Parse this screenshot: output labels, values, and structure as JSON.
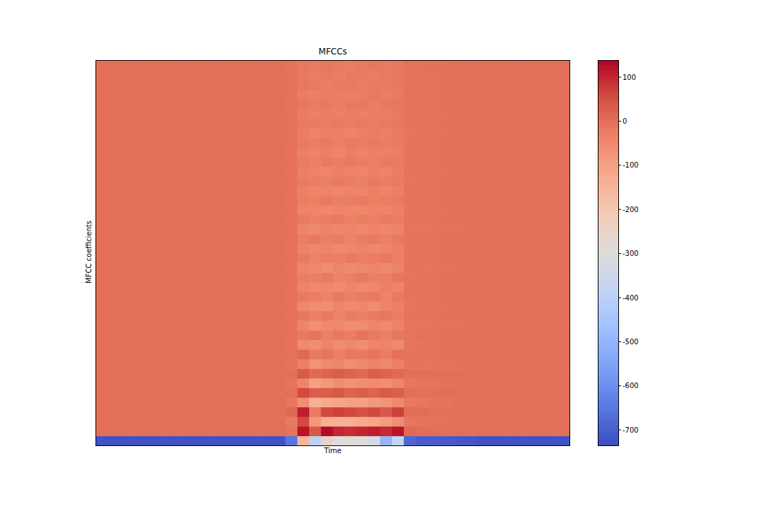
{
  "chart_data": {
    "type": "heatmap",
    "title": "MFCCs",
    "x_label": "Time",
    "y_label": "MFCC coefficients",
    "tick_labels": false,
    "colorbar": {
      "range": [
        -735,
        137
      ],
      "ticks": [
        100,
        0,
        -100,
        -200,
        -300,
        -400,
        -500,
        -600,
        -700
      ]
    },
    "cells": [
      [
        -720,
        -720,
        -720,
        -720,
        -720,
        -720,
        -720,
        -720,
        -720,
        -720,
        -720,
        -720,
        -720,
        -720,
        -720,
        -720,
        -650,
        -150,
        -400,
        -250,
        -300,
        -280,
        -300,
        -330,
        -500,
        -380,
        -680,
        -700,
        -700,
        -705,
        -710,
        -715,
        -720,
        -720,
        -720,
        -720,
        -720,
        -720,
        -720,
        -720
      ],
      [
        0,
        0,
        0,
        0,
        0,
        0,
        0,
        0,
        0,
        0,
        0,
        0,
        0,
        0,
        0,
        0,
        -10,
        120,
        40,
        130,
        100,
        90,
        100,
        110,
        95,
        120,
        10,
        5,
        0,
        0,
        0,
        0,
        0,
        0,
        0,
        0,
        0,
        0,
        0,
        0
      ],
      [
        0,
        0,
        0,
        0,
        0,
        0,
        0,
        0,
        0,
        0,
        0,
        0,
        0,
        0,
        0,
        0,
        -20,
        60,
        -80,
        -130,
        -140,
        -130,
        -120,
        -110,
        -90,
        -60,
        -15,
        -10,
        -5,
        -5,
        0,
        0,
        0,
        0,
        0,
        0,
        0,
        0,
        0,
        0
      ],
      [
        0,
        0,
        0,
        0,
        0,
        0,
        0,
        0,
        0,
        0,
        0,
        0,
        0,
        0,
        0,
        0,
        10,
        110,
        -20,
        60,
        70,
        60,
        50,
        60,
        40,
        70,
        5,
        5,
        0,
        0,
        0,
        0,
        0,
        0,
        0,
        0,
        0,
        0,
        0,
        0
      ],
      [
        0,
        0,
        0,
        0,
        0,
        0,
        0,
        0,
        0,
        0,
        0,
        0,
        0,
        0,
        0,
        0,
        -15,
        -60,
        -140,
        -120,
        -110,
        -100,
        -100,
        -80,
        -70,
        -50,
        -20,
        -15,
        -10,
        -8,
        -5,
        0,
        0,
        0,
        0,
        0,
        0,
        0,
        0,
        0
      ],
      [
        0,
        0,
        0,
        0,
        0,
        0,
        0,
        0,
        0,
        0,
        0,
        0,
        0,
        0,
        0,
        0,
        0,
        60,
        30,
        30,
        40,
        20,
        30,
        20,
        40,
        30,
        0,
        0,
        0,
        0,
        0,
        0,
        0,
        0,
        0,
        0,
        0,
        0,
        0,
        0
      ],
      [
        0,
        0,
        0,
        0,
        0,
        0,
        0,
        0,
        0,
        0,
        0,
        0,
        0,
        0,
        0,
        0,
        -10,
        -40,
        -100,
        -80,
        -60,
        -70,
        -60,
        -50,
        -60,
        -40,
        -15,
        -10,
        -10,
        -5,
        -5,
        0,
        0,
        0,
        0,
        0,
        0,
        0,
        0,
        0
      ],
      [
        0,
        0,
        0,
        0,
        0,
        0,
        0,
        0,
        0,
        0,
        0,
        0,
        0,
        0,
        0,
        0,
        0,
        40,
        10,
        20,
        30,
        20,
        10,
        30,
        20,
        10,
        0,
        0,
        0,
        0,
        0,
        0,
        0,
        0,
        0,
        0,
        0,
        0,
        0,
        0
      ],
      [
        0,
        0,
        0,
        0,
        0,
        0,
        0,
        0,
        0,
        0,
        0,
        0,
        0,
        0,
        0,
        0,
        -5,
        -30,
        -70,
        -50,
        -40,
        -60,
        -45,
        -35,
        -50,
        -30,
        -10,
        -10,
        -8,
        -5,
        -5,
        0,
        0,
        0,
        0,
        0,
        0,
        0,
        0,
        0
      ],
      [
        0,
        0,
        0,
        0,
        0,
        0,
        0,
        0,
        0,
        0,
        0,
        0,
        0,
        0,
        0,
        0,
        -5,
        10,
        -20,
        -10,
        -30,
        -15,
        -20,
        -10,
        -25,
        -5,
        -8,
        -5,
        -5,
        -3,
        0,
        0,
        0,
        0,
        0,
        0,
        0,
        0,
        0,
        0
      ],
      [
        0,
        0,
        0,
        0,
        0,
        0,
        0,
        0,
        0,
        0,
        0,
        0,
        0,
        0,
        0,
        0,
        -5,
        -50,
        -60,
        -40,
        -55,
        -45,
        -60,
        -40,
        -35,
        -50,
        -12,
        -10,
        -8,
        -5,
        -5,
        0,
        0,
        0,
        0,
        0,
        0,
        0,
        0,
        0
      ],
      [
        0,
        0,
        0,
        0,
        0,
        0,
        0,
        0,
        0,
        0,
        0,
        0,
        0,
        0,
        0,
        0,
        -5,
        -20,
        -10,
        -30,
        -15,
        -25,
        -10,
        -20,
        -30,
        -15,
        -8,
        -5,
        -5,
        -3,
        0,
        0,
        0,
        0,
        0,
        0,
        0,
        0,
        0,
        0
      ],
      [
        0,
        0,
        0,
        0,
        0,
        0,
        0,
        0,
        0,
        0,
        0,
        0,
        0,
        0,
        0,
        0,
        -5,
        -40,
        -65,
        -50,
        -45,
        -60,
        -55,
        -40,
        -50,
        -35,
        -12,
        -10,
        -8,
        -5,
        -5,
        0,
        0,
        0,
        0,
        0,
        0,
        0,
        0,
        0
      ],
      [
        0,
        0,
        0,
        0,
        0,
        0,
        0,
        0,
        0,
        0,
        0,
        0,
        0,
        0,
        0,
        0,
        -5,
        -15,
        -30,
        -20,
        -35,
        -25,
        -30,
        -20,
        -15,
        -25,
        -8,
        -6,
        -5,
        -3,
        0,
        0,
        0,
        0,
        0,
        0,
        0,
        0,
        0,
        0
      ],
      [
        0,
        0,
        0,
        0,
        0,
        0,
        0,
        0,
        0,
        0,
        0,
        0,
        0,
        0,
        0,
        0,
        -5,
        -45,
        -55,
        -60,
        -40,
        -50,
        -45,
        -55,
        -40,
        -30,
        -12,
        -10,
        -8,
        -5,
        -5,
        0,
        0,
        0,
        0,
        0,
        0,
        0,
        0,
        0
      ],
      [
        0,
        0,
        0,
        0,
        0,
        0,
        0,
        0,
        0,
        0,
        0,
        0,
        0,
        0,
        0,
        0,
        -5,
        -20,
        -25,
        -35,
        -20,
        -30,
        -25,
        -20,
        -35,
        -20,
        -8,
        -6,
        -5,
        -3,
        0,
        0,
        0,
        0,
        0,
        0,
        0,
        0,
        0,
        0
      ],
      [
        0,
        0,
        0,
        0,
        0,
        0,
        0,
        0,
        0,
        0,
        0,
        0,
        0,
        0,
        0,
        0,
        -5,
        -35,
        -50,
        -45,
        -55,
        -40,
        -50,
        -45,
        -30,
        -40,
        -10,
        -10,
        -8,
        -5,
        -5,
        0,
        0,
        0,
        0,
        0,
        0,
        0,
        0,
        0
      ],
      [
        0,
        0,
        0,
        0,
        0,
        0,
        0,
        0,
        0,
        0,
        0,
        0,
        0,
        0,
        0,
        0,
        -5,
        -25,
        -30,
        -20,
        -35,
        -30,
        -20,
        -30,
        -25,
        -15,
        -8,
        -6,
        -5,
        -3,
        0,
        0,
        0,
        0,
        0,
        0,
        0,
        0,
        0,
        0
      ],
      [
        0,
        0,
        0,
        0,
        0,
        0,
        0,
        0,
        0,
        0,
        0,
        0,
        0,
        0,
        0,
        0,
        -5,
        -40,
        -45,
        -55,
        -40,
        -50,
        -45,
        -40,
        -50,
        -35,
        -10,
        -10,
        -8,
        -5,
        -5,
        0,
        0,
        0,
        0,
        0,
        0,
        0,
        0,
        0
      ],
      [
        0,
        0,
        0,
        0,
        0,
        0,
        0,
        0,
        0,
        0,
        0,
        0,
        0,
        0,
        0,
        0,
        -5,
        -20,
        -35,
        -25,
        -30,
        -20,
        -30,
        -25,
        -20,
        -30,
        -8,
        -6,
        -5,
        -3,
        0,
        0,
        0,
        0,
        0,
        0,
        0,
        0,
        0,
        0
      ],
      [
        0,
        0,
        0,
        0,
        0,
        0,
        0,
        0,
        0,
        0,
        0,
        0,
        0,
        0,
        0,
        0,
        -5,
        -35,
        -45,
        -40,
        -50,
        -45,
        -35,
        -45,
        -40,
        -30,
        -10,
        -8,
        -8,
        -5,
        -5,
        0,
        0,
        0,
        0,
        0,
        0,
        0,
        0,
        0
      ],
      [
        0,
        0,
        0,
        0,
        0,
        0,
        0,
        0,
        0,
        0,
        0,
        0,
        0,
        0,
        0,
        0,
        -5,
        -25,
        -20,
        -30,
        -25,
        -35,
        -25,
        -20,
        -30,
        -20,
        -8,
        -6,
        -5,
        -3,
        0,
        0,
        0,
        0,
        0,
        0,
        0,
        0,
        0,
        0
      ],
      [
        0,
        0,
        0,
        0,
        0,
        0,
        0,
        0,
        0,
        0,
        0,
        0,
        0,
        0,
        0,
        0,
        -5,
        -40,
        -50,
        -35,
        -45,
        -40,
        -50,
        -35,
        -45,
        -35,
        -10,
        -8,
        -8,
        -5,
        -5,
        0,
        0,
        0,
        0,
        0,
        0,
        0,
        0,
        0
      ],
      [
        0,
        0,
        0,
        0,
        0,
        0,
        0,
        0,
        0,
        0,
        0,
        0,
        0,
        0,
        0,
        0,
        -5,
        -20,
        -30,
        -25,
        -20,
        -30,
        -25,
        -30,
        -20,
        -25,
        -8,
        -6,
        -5,
        -3,
        0,
        0,
        0,
        0,
        0,
        0,
        0,
        0,
        0,
        0
      ],
      [
        0,
        0,
        0,
        0,
        0,
        0,
        0,
        0,
        0,
        0,
        0,
        0,
        0,
        0,
        0,
        0,
        -5,
        -35,
        -40,
        -45,
        -35,
        -40,
        -45,
        -35,
        -40,
        -30,
        -10,
        -8,
        -6,
        -5,
        -3,
        0,
        0,
        0,
        0,
        0,
        0,
        0,
        0,
        0
      ],
      [
        0,
        0,
        0,
        0,
        0,
        0,
        0,
        0,
        0,
        0,
        0,
        0,
        0,
        0,
        0,
        0,
        -5,
        -25,
        -30,
        -20,
        -30,
        -25,
        -20,
        -30,
        -25,
        -20,
        -8,
        -6,
        -5,
        -3,
        0,
        0,
        0,
        0,
        0,
        0,
        0,
        0,
        0,
        0
      ],
      [
        0,
        0,
        0,
        0,
        0,
        0,
        0,
        0,
        0,
        0,
        0,
        0,
        0,
        0,
        0,
        0,
        -5,
        -30,
        -40,
        -35,
        -45,
        -35,
        -40,
        -30,
        -35,
        -30,
        -10,
        -8,
        -6,
        -5,
        -3,
        0,
        0,
        0,
        0,
        0,
        0,
        0,
        0,
        0
      ],
      [
        0,
        0,
        0,
        0,
        0,
        0,
        0,
        0,
        0,
        0,
        0,
        0,
        0,
        0,
        0,
        0,
        -5,
        -20,
        -25,
        -30,
        -20,
        -25,
        -30,
        -20,
        -25,
        -20,
        -8,
        -6,
        -5,
        -3,
        0,
        0,
        0,
        0,
        0,
        0,
        0,
        0,
        0,
        0
      ],
      [
        0,
        0,
        0,
        0,
        0,
        0,
        0,
        0,
        0,
        0,
        0,
        0,
        0,
        0,
        0,
        0,
        -5,
        -30,
        -35,
        -40,
        -30,
        -35,
        -40,
        -30,
        -35,
        -25,
        -8,
        -8,
        -6,
        -5,
        -3,
        0,
        0,
        0,
        0,
        0,
        0,
        0,
        0,
        0
      ],
      [
        0,
        0,
        0,
        0,
        0,
        0,
        0,
        0,
        0,
        0,
        0,
        0,
        0,
        0,
        0,
        0,
        -5,
        -20,
        -30,
        -20,
        -25,
        -20,
        -25,
        -30,
        -20,
        -20,
        -8,
        -6,
        -5,
        -3,
        0,
        0,
        0,
        0,
        0,
        0,
        0,
        0,
        0,
        0
      ],
      [
        0,
        0,
        0,
        0,
        0,
        0,
        0,
        0,
        0,
        0,
        0,
        0,
        0,
        0,
        0,
        0,
        -5,
        -30,
        -35,
        -30,
        -40,
        -30,
        -35,
        -30,
        -30,
        -25,
        -8,
        -8,
        -6,
        -5,
        -3,
        0,
        0,
        0,
        0,
        0,
        0,
        0,
        0,
        0
      ],
      [
        0,
        0,
        0,
        0,
        0,
        0,
        0,
        0,
        0,
        0,
        0,
        0,
        0,
        0,
        0,
        0,
        -5,
        -20,
        -25,
        -20,
        -30,
        -20,
        -25,
        -20,
        -25,
        -20,
        -8,
        -6,
        -5,
        -3,
        0,
        0,
        0,
        0,
        0,
        0,
        0,
        0,
        0,
        0
      ],
      [
        0,
        0,
        0,
        0,
        0,
        0,
        0,
        0,
        0,
        0,
        0,
        0,
        0,
        0,
        0,
        0,
        -5,
        -25,
        -35,
        -30,
        -30,
        -35,
        -30,
        -25,
        -30,
        -20,
        -8,
        -6,
        -6,
        -5,
        -3,
        0,
        0,
        0,
        0,
        0,
        0,
        0,
        0,
        0
      ],
      [
        0,
        0,
        0,
        0,
        0,
        0,
        0,
        0,
        0,
        0,
        0,
        0,
        0,
        0,
        0,
        0,
        -5,
        -20,
        -20,
        -25,
        -20,
        -25,
        -20,
        -25,
        -20,
        -15,
        -6,
        -6,
        -5,
        -3,
        0,
        0,
        0,
        0,
        0,
        0,
        0,
        0,
        0,
        0
      ],
      [
        0,
        0,
        0,
        0,
        0,
        0,
        0,
        0,
        0,
        0,
        0,
        0,
        0,
        0,
        0,
        0,
        -5,
        -25,
        -30,
        -25,
        -30,
        -25,
        -30,
        -25,
        -25,
        -20,
        -8,
        -6,
        -5,
        -5,
        -3,
        0,
        0,
        0,
        0,
        0,
        0,
        0,
        0,
        0
      ],
      [
        0,
        0,
        0,
        0,
        0,
        0,
        0,
        0,
        0,
        0,
        0,
        0,
        0,
        0,
        0,
        0,
        -5,
        -15,
        -25,
        -20,
        -25,
        -20,
        -20,
        -25,
        -20,
        -15,
        -6,
        -5,
        -5,
        -3,
        0,
        0,
        0,
        0,
        0,
        0,
        0,
        0,
        0,
        0
      ],
      [
        0,
        0,
        0,
        0,
        0,
        0,
        0,
        0,
        0,
        0,
        0,
        0,
        0,
        0,
        0,
        0,
        -5,
        -25,
        -30,
        -25,
        -25,
        -30,
        -25,
        -20,
        -25,
        -20,
        -6,
        -6,
        -5,
        -3,
        -3,
        0,
        0,
        0,
        0,
        0,
        0,
        0,
        0,
        0
      ],
      [
        0,
        0,
        0,
        0,
        0,
        0,
        0,
        0,
        0,
        0,
        0,
        0,
        0,
        0,
        0,
        0,
        -5,
        -15,
        -20,
        -25,
        -20,
        -20,
        -25,
        -20,
        -20,
        -15,
        -6,
        -5,
        -5,
        -3,
        0,
        0,
        0,
        0,
        0,
        0,
        0,
        0,
        0,
        0
      ],
      [
        0,
        0,
        0,
        0,
        0,
        0,
        0,
        0,
        0,
        0,
        0,
        0,
        0,
        0,
        0,
        0,
        -5,
        -20,
        -25,
        -20,
        -25,
        -20,
        -20,
        -25,
        -20,
        -15,
        -6,
        -5,
        -5,
        -3,
        0,
        0,
        0,
        0,
        0,
        0,
        0,
        0,
        0,
        0
      ],
      [
        0,
        0,
        0,
        0,
        0,
        0,
        0,
        0,
        0,
        0,
        0,
        0,
        0,
        0,
        0,
        0,
        -5,
        -15,
        -20,
        -15,
        -20,
        -25,
        -20,
        -15,
        -20,
        -15,
        -5,
        -5,
        -3,
        -3,
        0,
        0,
        0,
        0,
        0,
        0,
        0,
        0,
        0,
        0
      ]
    ]
  }
}
